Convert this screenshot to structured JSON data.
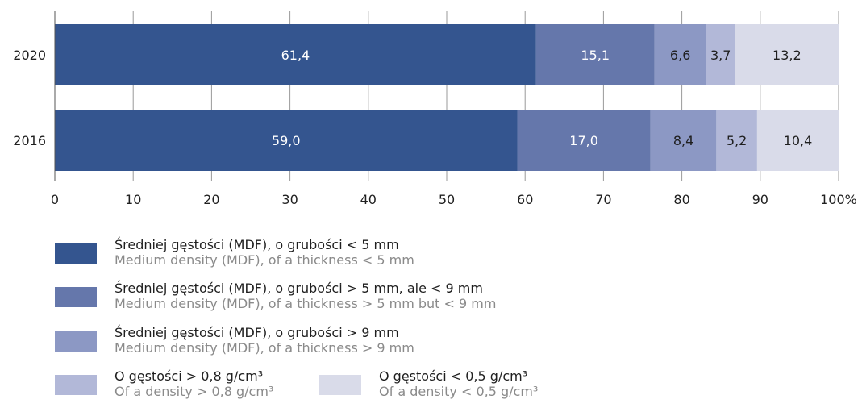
{
  "chart_data": {
    "type": "bar",
    "orientation": "horizontal",
    "stacked": true,
    "categories": [
      "2020",
      "2016"
    ],
    "series": [
      {
        "name": "Średniej gęstości (MDF), o grubości < 5 mm",
        "name_en": "Medium density (MDF), of a thickness < 5 mm",
        "values": [
          61.4,
          59.0
        ],
        "labels": [
          "61,4",
          "59,0"
        ],
        "color": "#34558f",
        "label_color": "#ffffff"
      },
      {
        "name": "Średniej gęstości (MDF), o grubości > 5 mm, ale < 9 mm",
        "name_en": "Medium density (MDF), of a thickness > 5 mm but < 9 mm",
        "values": [
          15.1,
          17.0
        ],
        "labels": [
          "15,1",
          "17,0"
        ],
        "color": "#6577ab",
        "label_color": "#ffffff"
      },
      {
        "name": "Średniej gęstości (MDF), o grubości > 9 mm",
        "name_en": "Medium density (MDF), of a thickness > 9 mm",
        "values": [
          6.6,
          8.4
        ],
        "labels": [
          "6,6",
          "8,4"
        ],
        "color": "#8c98c4",
        "label_color": "#1f1f1f"
      },
      {
        "name": "O gęstości > 0,8 g/cm³",
        "name_en": "Of a density > 0,8 g/cm³",
        "values": [
          3.7,
          5.2
        ],
        "labels": [
          "3,7",
          "5,2"
        ],
        "color": "#b2b8d8",
        "label_color": "#1f1f1f"
      },
      {
        "name": "O gęstości < 0,5 g/cm³",
        "name_en": "Of a density < 0,5 g/cm³",
        "values": [
          13.2,
          10.4
        ],
        "labels": [
          "13,2",
          "10,4"
        ],
        "color": "#d9dbe9",
        "label_color": "#1f1f1f"
      }
    ],
    "xlim": [
      0,
      100
    ],
    "xticks": [
      0,
      10,
      20,
      30,
      40,
      50,
      60,
      70,
      80,
      90,
      100
    ],
    "xtick_labels": [
      "0",
      "10",
      "20",
      "30",
      "40",
      "50",
      "60",
      "70",
      "80",
      "90",
      "100%"
    ],
    "grid": "vertical",
    "legend_position": "bottom"
  }
}
